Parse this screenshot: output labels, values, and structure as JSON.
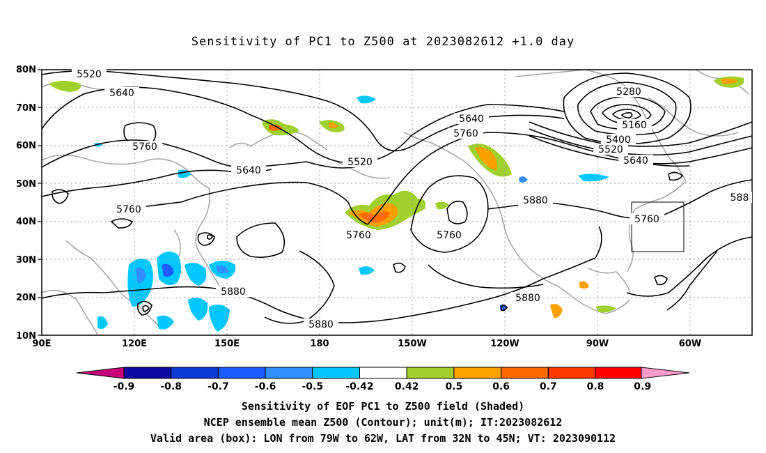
{
  "title": "Sensitivity of PC1 to Z500 at 2023082612 +1.0 day",
  "lat_labels": [
    "80N",
    "70N",
    "60N",
    "50N",
    "40N",
    "30N",
    "20N",
    "10N"
  ],
  "lon_labels": [
    "90E",
    "120E",
    "150E",
    "180",
    "150W",
    "120W",
    "90W",
    "60W"
  ],
  "contour_labels": [
    "5520",
    "5640",
    "5760",
    "5640",
    "5760",
    "5520",
    "5640",
    "5760",
    "5760",
    "5880",
    "5880",
    "5880",
    "5880",
    "5280",
    "5160",
    "5400",
    "5520",
    "5640",
    "5760",
    "588"
  ],
  "colorbar": {
    "labels": [
      "-0.9",
      "-0.8",
      "-0.7",
      "-0.6",
      "-0.5",
      "-0.42",
      "0.42",
      "0.5",
      "0.6",
      "0.7",
      "0.8",
      "0.9"
    ],
    "colors": [
      "#c8007a",
      "#0a0aa0",
      "#0a3ad4",
      "#1c5cff",
      "#2f8fff",
      "#00c8ff",
      "#ffffff",
      "#a0d02c",
      "#ffa000",
      "#ff6a00",
      "#ff3800",
      "#ff0000",
      "#ff9ccc"
    ]
  },
  "captions": {
    "line1": "Sensitivity of EOF PC1 to Z500 field (Shaded)",
    "line2": "NCEP ensemble mean Z500 (Contour); unit(m); IT:2023082612",
    "line3": "Valid area (box): LON from 79W to 62W, LAT from 32N to 45N; VT: 2023090112"
  }
}
